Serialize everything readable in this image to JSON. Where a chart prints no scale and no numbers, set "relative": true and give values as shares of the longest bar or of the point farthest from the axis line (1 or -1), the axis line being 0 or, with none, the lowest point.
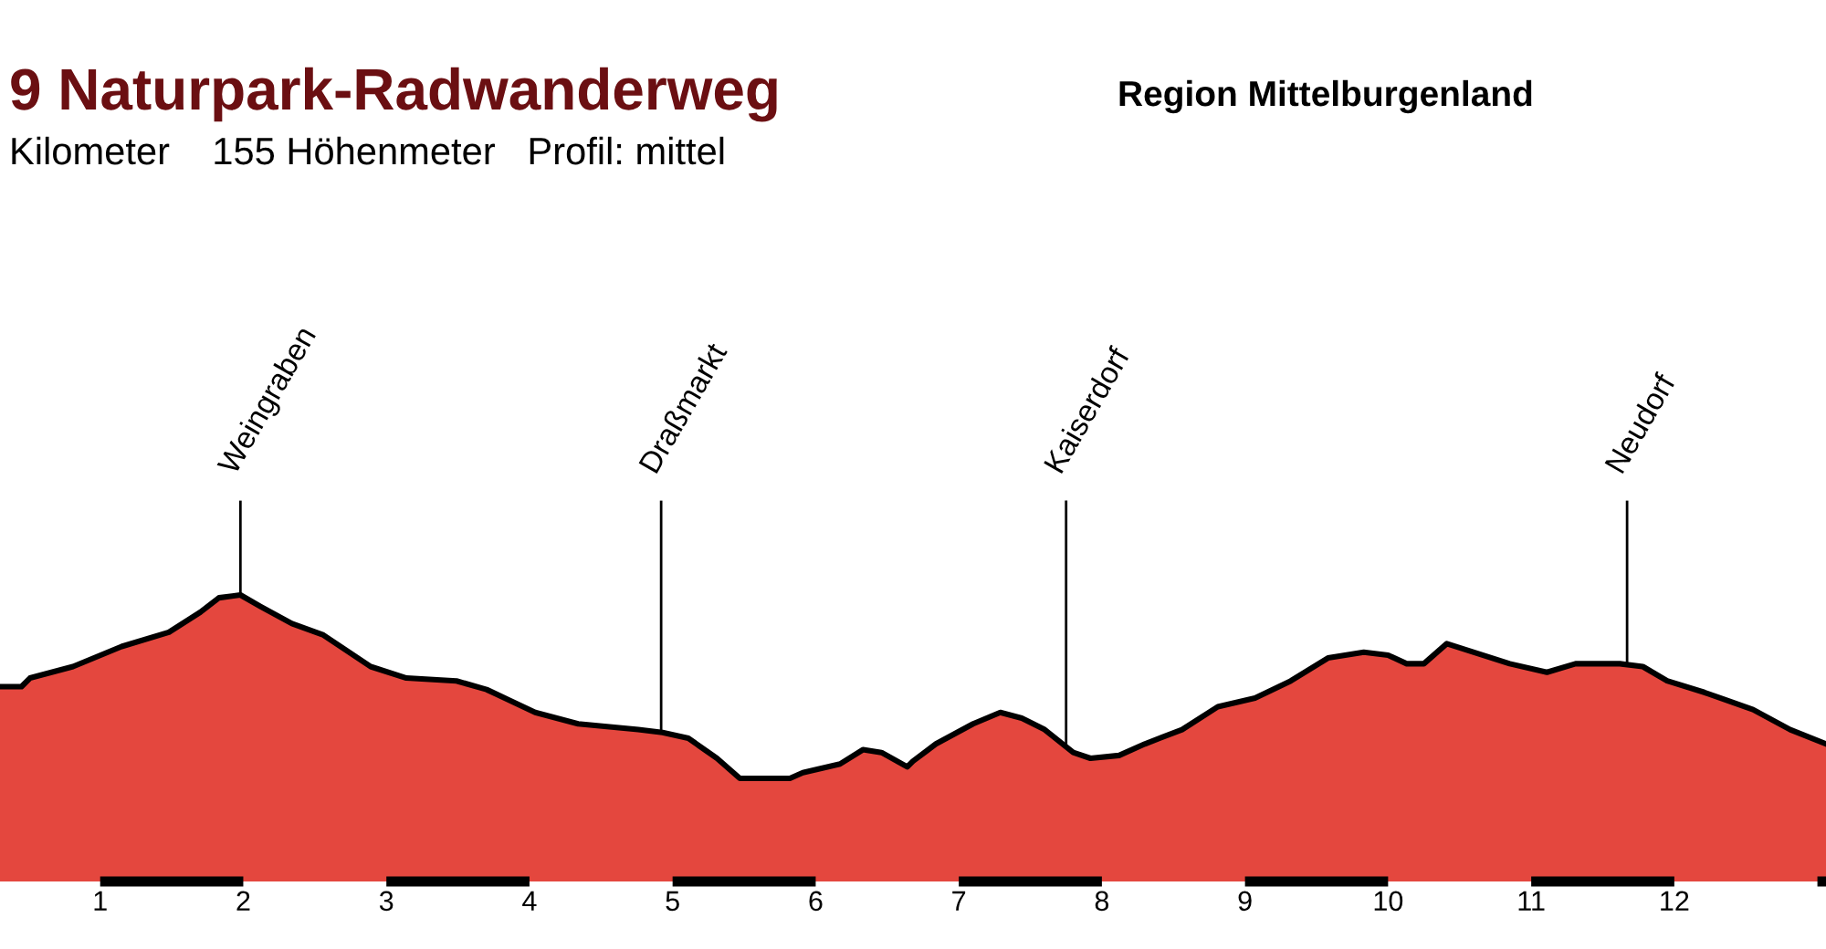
{
  "chart_data": {
    "type": "area",
    "relative": true,
    "title": "9 Naturpark-Radwanderweg",
    "subtitle": "Region Mittelburgenland",
    "annotations": [
      "Kilometer    155 Höhenmeter   Profil: mittel"
    ],
    "x": [
      0.3,
      0.45,
      0.51,
      0.81,
      1.15,
      1.48,
      1.7,
      1.83,
      1.98,
      2.12,
      2.34,
      2.56,
      2.89,
      3.14,
      3.49,
      3.7,
      4.04,
      4.34,
      4.76,
      4.93,
      5.11,
      5.31,
      5.47,
      5.82,
      5.91,
      6.17,
      6.33,
      6.46,
      6.64,
      6.68,
      6.84,
      7.1,
      7.29,
      7.44,
      7.6,
      7.8,
      7.92,
      8.12,
      8.3,
      8.56,
      8.81,
      9.07,
      9.32,
      9.58,
      9.83,
      10.0,
      10.13,
      10.25,
      10.41,
      10.6,
      10.85,
      11.11,
      11.31,
      11.62,
      11.78,
      11.95,
      12.21,
      12.55,
      12.81,
      13.06
    ],
    "values": [
      0.68,
      0.68,
      0.71,
      0.75,
      0.82,
      0.87,
      0.94,
      0.99,
      1.0,
      0.96,
      0.9,
      0.86,
      0.75,
      0.71,
      0.7,
      0.67,
      0.59,
      0.55,
      0.53,
      0.52,
      0.5,
      0.43,
      0.36,
      0.36,
      0.38,
      0.41,
      0.46,
      0.45,
      0.4,
      0.42,
      0.48,
      0.55,
      0.59,
      0.57,
      0.53,
      0.45,
      0.43,
      0.44,
      0.48,
      0.53,
      0.61,
      0.64,
      0.7,
      0.78,
      0.8,
      0.79,
      0.76,
      0.76,
      0.83,
      0.8,
      0.76,
      0.73,
      0.76,
      0.76,
      0.75,
      0.7,
      0.66,
      0.6,
      0.53,
      0.48
    ],
    "color": "#e4473e",
    "xlim": [
      0.3,
      13.06
    ],
    "xticks": [
      1,
      2,
      3,
      4,
      5,
      6,
      7,
      8,
      9,
      10,
      11,
      12
    ],
    "tick_labels": "x",
    "ref_lines": [
      {
        "axis": "x",
        "value": 1.98,
        "label": "Weingraben"
      },
      {
        "axis": "x",
        "value": 4.92,
        "label": "Draßmarkt"
      },
      {
        "axis": "x",
        "value": 7.75,
        "label": "Kaiserdorf"
      },
      {
        "axis": "x",
        "value": 11.67,
        "label": "Neudorf"
      }
    ]
  }
}
